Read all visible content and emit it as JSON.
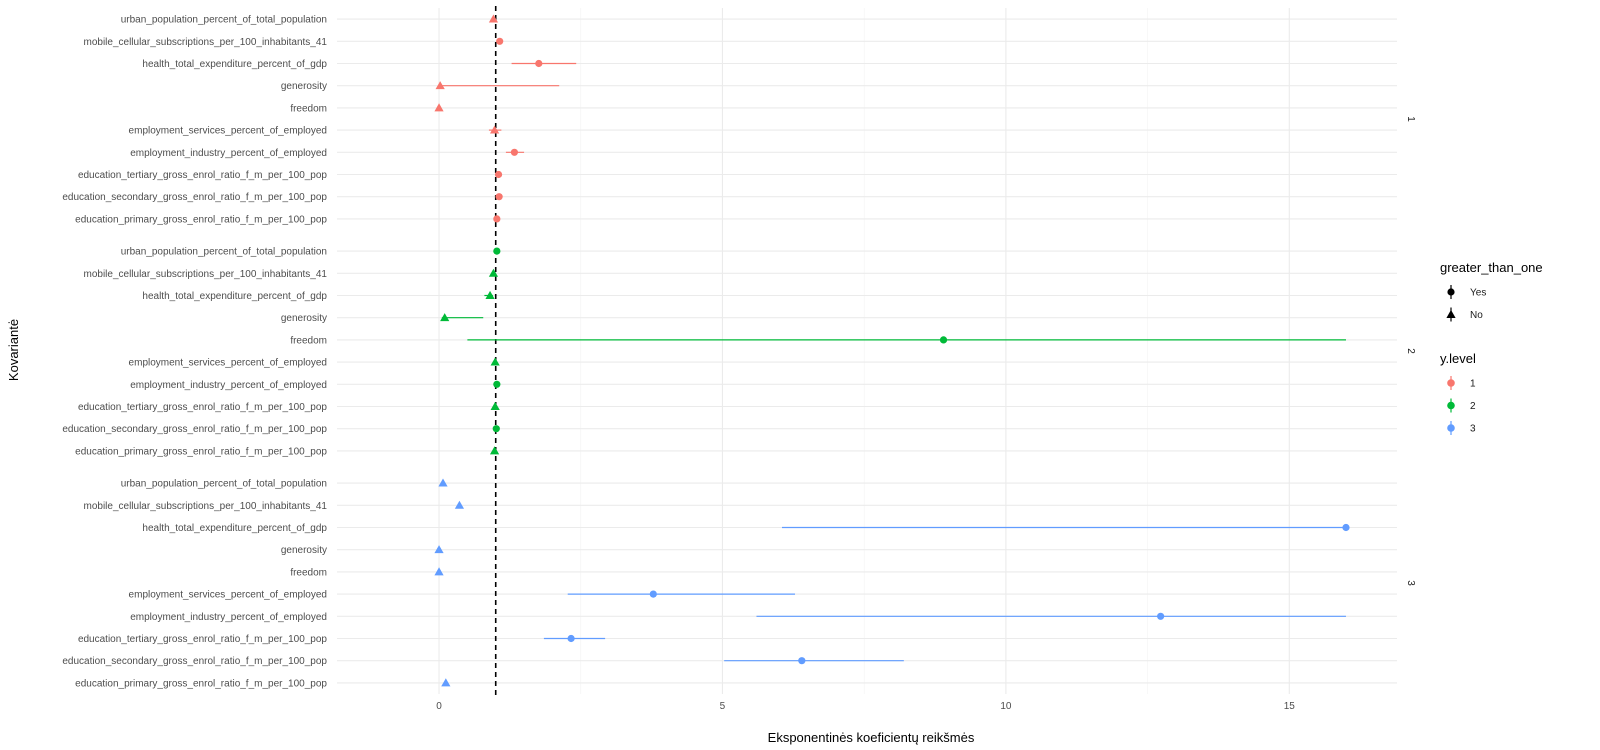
{
  "chart_data": {
    "type": "scatter",
    "xlabel": "Eksponentinės koeficientų reikšmės",
    "ylabel": "Kovariantė",
    "xlim": [
      -1.8,
      16.9
    ],
    "x_ticks": [
      0,
      5,
      10,
      15
    ],
    "x_tick_labels": [
      "0",
      "5",
      "10",
      "15"
    ],
    "reference_line_x": 1,
    "grid": true,
    "covariates": [
      "education_primary_gross_enrol_ratio_f_m_per_100_pop",
      "education_secondary_gross_enrol_ratio_f_m_per_100_pop",
      "education_tertiary_gross_enrol_ratio_f_m_per_100_pop",
      "employment_industry_percent_of_employed",
      "employment_services_percent_of_employed",
      "freedom",
      "generosity",
      "health_total_expenditure_percent_of_gdp",
      "mobile_cellular_subscriptions_per_100_inhabitants_41",
      "urban_population_percent_of_total_population"
    ],
    "colors": {
      "1": "#F8766D",
      "2": "#00BA38",
      "3": "#619CFF"
    },
    "panels": [
      {
        "strip": "1",
        "points": [
          {
            "covariate": "urban_population_percent_of_total_population",
            "estimate": 0.96,
            "low": 0.96,
            "high": 0.96,
            "greater_than_one": "No"
          },
          {
            "covariate": "mobile_cellular_subscriptions_per_100_inhabitants_41",
            "estimate": 1.07,
            "low": 1.07,
            "high": 1.07,
            "greater_than_one": "Yes"
          },
          {
            "covariate": "health_total_expenditure_percent_of_gdp",
            "estimate": 1.76,
            "low": 1.28,
            "high": 2.42,
            "greater_than_one": "Yes"
          },
          {
            "covariate": "generosity",
            "estimate": 0.02,
            "low": 0.0,
            "high": 2.12,
            "greater_than_one": "No"
          },
          {
            "covariate": "freedom",
            "estimate": 0.0,
            "low": 0.0,
            "high": 0.0,
            "greater_than_one": "No"
          },
          {
            "covariate": "employment_services_percent_of_employed",
            "estimate": 0.98,
            "low": 0.88,
            "high": 1.1,
            "greater_than_one": "No"
          },
          {
            "covariate": "employment_industry_percent_of_employed",
            "estimate": 1.33,
            "low": 1.18,
            "high": 1.5,
            "greater_than_one": "Yes"
          },
          {
            "covariate": "education_tertiary_gross_enrol_ratio_f_m_per_100_pop",
            "estimate": 1.05,
            "low": 1.05,
            "high": 1.05,
            "greater_than_one": "Yes"
          },
          {
            "covariate": "education_secondary_gross_enrol_ratio_f_m_per_100_pop",
            "estimate": 1.06,
            "low": 1.06,
            "high": 1.06,
            "greater_than_one": "Yes"
          },
          {
            "covariate": "education_primary_gross_enrol_ratio_f_m_per_100_pop",
            "estimate": 1.02,
            "low": 0.98,
            "high": 1.06,
            "greater_than_one": "Yes"
          }
        ]
      },
      {
        "strip": "2",
        "points": [
          {
            "covariate": "urban_population_percent_of_total_population",
            "estimate": 1.02,
            "low": 1.02,
            "high": 1.02,
            "greater_than_one": "Yes"
          },
          {
            "covariate": "mobile_cellular_subscriptions_per_100_inhabitants_41",
            "estimate": 0.96,
            "low": 0.94,
            "high": 0.98,
            "greater_than_one": "No"
          },
          {
            "covariate": "health_total_expenditure_percent_of_gdp",
            "estimate": 0.9,
            "low": 0.8,
            "high": 0.95,
            "greater_than_one": "No"
          },
          {
            "covariate": "generosity",
            "estimate": 0.1,
            "low": 0.05,
            "high": 0.78,
            "greater_than_one": "No"
          },
          {
            "covariate": "freedom",
            "estimate": 8.9,
            "low": 0.5,
            "high": 16.0,
            "greater_than_one": "Yes"
          },
          {
            "covariate": "employment_services_percent_of_employed",
            "estimate": 0.99,
            "low": 0.99,
            "high": 0.99,
            "greater_than_one": "No"
          },
          {
            "covariate": "employment_industry_percent_of_employed",
            "estimate": 1.02,
            "low": 1.02,
            "high": 1.02,
            "greater_than_one": "Yes"
          },
          {
            "covariate": "education_tertiary_gross_enrol_ratio_f_m_per_100_pop",
            "estimate": 0.99,
            "low": 0.99,
            "high": 0.99,
            "greater_than_one": "No"
          },
          {
            "covariate": "education_secondary_gross_enrol_ratio_f_m_per_100_pop",
            "estimate": 1.01,
            "low": 1.01,
            "high": 1.01,
            "greater_than_one": "Yes"
          },
          {
            "covariate": "education_primary_gross_enrol_ratio_f_m_per_100_pop",
            "estimate": 0.98,
            "low": 0.98,
            "high": 0.98,
            "greater_than_one": "No"
          }
        ]
      },
      {
        "strip": "3",
        "points": [
          {
            "covariate": "urban_population_percent_of_total_population",
            "estimate": 0.07,
            "low": 0.07,
            "high": 0.07,
            "greater_than_one": "No"
          },
          {
            "covariate": "mobile_cellular_subscriptions_per_100_inhabitants_41",
            "estimate": 0.36,
            "low": 0.36,
            "high": 0.36,
            "greater_than_one": "No"
          },
          {
            "covariate": "health_total_expenditure_percent_of_gdp",
            "estimate": 16.0,
            "low": 6.05,
            "high": 16.0,
            "greater_than_one": "Yes"
          },
          {
            "covariate": "generosity",
            "estimate": 0.0,
            "low": 0.0,
            "high": 0.0,
            "greater_than_one": "No"
          },
          {
            "covariate": "freedom",
            "estimate": 0.0,
            "low": 0.0,
            "high": 0.0,
            "greater_than_one": "No"
          },
          {
            "covariate": "employment_services_percent_of_employed",
            "estimate": 3.78,
            "low": 2.27,
            "high": 6.28,
            "greater_than_one": "Yes"
          },
          {
            "covariate": "employment_industry_percent_of_employed",
            "estimate": 12.73,
            "low": 5.6,
            "high": 16.0,
            "greater_than_one": "Yes"
          },
          {
            "covariate": "education_tertiary_gross_enrol_ratio_f_m_per_100_pop",
            "estimate": 2.33,
            "low": 1.85,
            "high": 2.93,
            "greater_than_one": "Yes"
          },
          {
            "covariate": "education_secondary_gross_enrol_ratio_f_m_per_100_pop",
            "estimate": 6.4,
            "low": 5.03,
            "high": 8.2,
            "greater_than_one": "Yes"
          },
          {
            "covariate": "education_primary_gross_enrol_ratio_f_m_per_100_pop",
            "estimate": 0.12,
            "low": 0.12,
            "high": 0.12,
            "greater_than_one": "No"
          }
        ]
      }
    ],
    "legends": [
      {
        "title": "greater_than_one",
        "kind": "shape",
        "items": [
          {
            "label": "Yes",
            "shape": "circle"
          },
          {
            "label": "No",
            "shape": "triangle"
          }
        ]
      },
      {
        "title": "y.level",
        "kind": "color",
        "items": [
          {
            "label": "1",
            "color": "#F8766D"
          },
          {
            "label": "2",
            "color": "#00BA38"
          },
          {
            "label": "3",
            "color": "#619CFF"
          }
        ]
      }
    ],
    "legend_position": "right"
  }
}
